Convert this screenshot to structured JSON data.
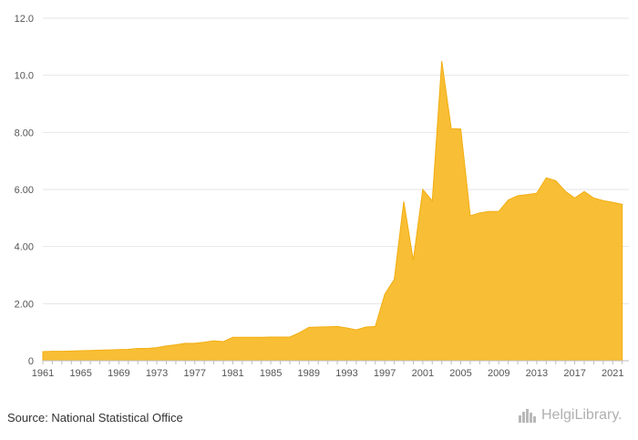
{
  "chart_data": {
    "type": "area",
    "title": "",
    "xlabel": "",
    "ylabel": "",
    "ylim": [
      0,
      12
    ],
    "y_ticks": [
      "0",
      "2.00",
      "4.00",
      "6.00",
      "8.00",
      "10.0",
      "12.0"
    ],
    "x_ticks": [
      "1961",
      "1965",
      "1969",
      "1973",
      "1977",
      "1981",
      "1985",
      "1989",
      "1993",
      "1997",
      "2001",
      "2005",
      "2009",
      "2013",
      "2017",
      "2021"
    ],
    "grid": true,
    "color": "#f8bb2a",
    "x": [
      1961,
      1962,
      1963,
      1964,
      1965,
      1966,
      1967,
      1968,
      1969,
      1970,
      1971,
      1972,
      1973,
      1974,
      1975,
      1976,
      1977,
      1978,
      1979,
      1980,
      1981,
      1982,
      1983,
      1984,
      1985,
      1986,
      1987,
      1988,
      1989,
      1990,
      1991,
      1992,
      1993,
      1994,
      1995,
      1996,
      1997,
      1998,
      1999,
      2000,
      2001,
      2002,
      2003,
      2004,
      2005,
      2006,
      2007,
      2008,
      2009,
      2010,
      2011,
      2012,
      2013,
      2014,
      2015,
      2016,
      2017,
      2018,
      2019,
      2020,
      2021,
      2022
    ],
    "values": [
      0.32,
      0.33,
      0.33,
      0.34,
      0.35,
      0.36,
      0.37,
      0.38,
      0.39,
      0.4,
      0.43,
      0.43,
      0.46,
      0.52,
      0.56,
      0.61,
      0.61,
      0.65,
      0.7,
      0.67,
      0.82,
      0.82,
      0.82,
      0.82,
      0.83,
      0.83,
      0.83,
      0.98,
      1.17,
      1.18,
      1.19,
      1.2,
      1.15,
      1.08,
      1.18,
      1.2,
      2.33,
      2.85,
      5.58,
      3.52,
      6.0,
      5.6,
      10.5,
      8.13,
      8.12,
      5.08,
      5.18,
      5.23,
      5.23,
      5.63,
      5.78,
      5.82,
      5.87,
      6.41,
      6.31,
      5.94,
      5.7,
      5.93,
      5.7,
      5.61,
      5.55,
      5.48
    ]
  },
  "footer": {
    "source": "Source: National Statistical Office",
    "brand": "HelgiLibrary.",
    "brand_icon": "city-skyline-icon"
  }
}
